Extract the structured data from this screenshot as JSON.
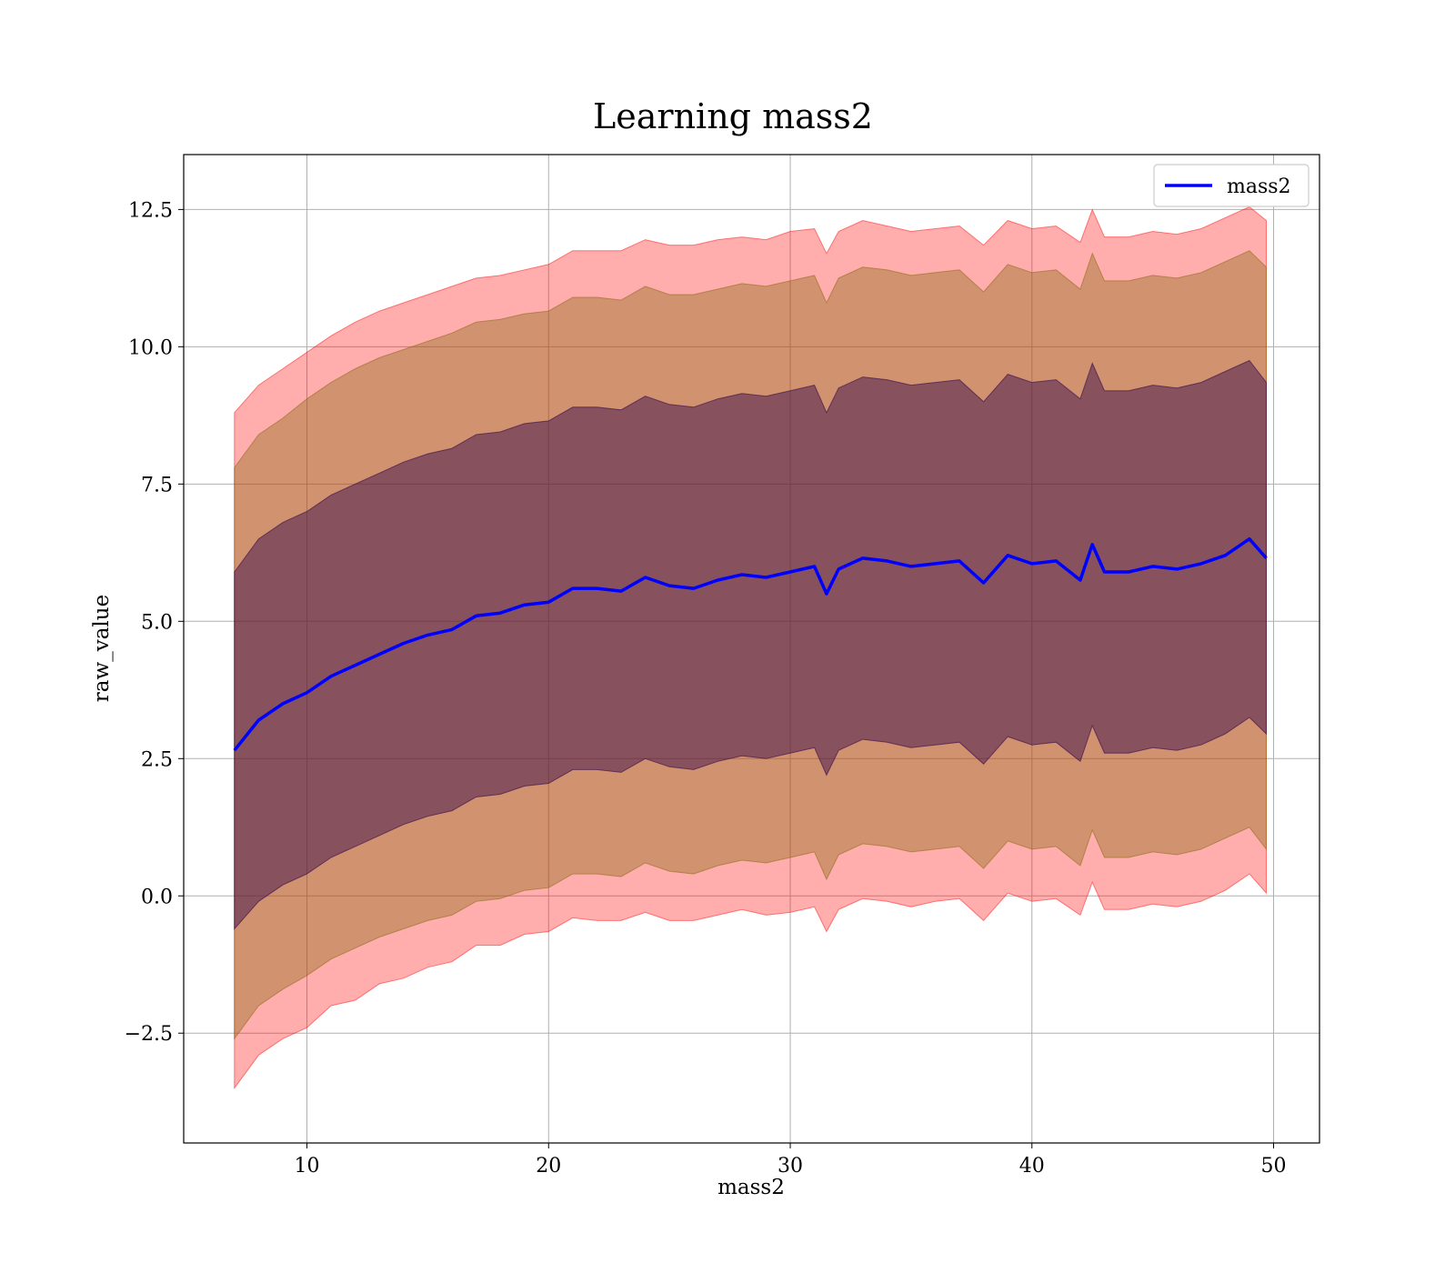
{
  "chart_data": {
    "type": "line",
    "title": "Learning mass2",
    "xlabel": "mass2",
    "ylabel": "raw_value",
    "xlim": [
      4.9,
      51.9
    ],
    "ylim": [
      -4.5,
      13.5
    ],
    "x_ticks": [
      10,
      20,
      30,
      40,
      50
    ],
    "x_tick_labels": [
      "10",
      "20",
      "30",
      "40",
      "50"
    ],
    "y_ticks": [
      -2.5,
      0.0,
      2.5,
      5.0,
      7.5,
      10.0,
      12.5
    ],
    "y_tick_labels": [
      "−2.5",
      "0.0",
      "2.5",
      "5.0",
      "7.5",
      "10.0",
      "12.5"
    ],
    "grid": true,
    "legend": {
      "position": "upper-right",
      "entries": [
        {
          "label": "mass2",
          "color": "#0000ff"
        }
      ]
    },
    "x": [
      7.0,
      8.0,
      9.0,
      10.0,
      11.0,
      12.0,
      13.0,
      14.0,
      15.0,
      16.0,
      17.0,
      18.0,
      19.0,
      20.0,
      21.0,
      22.0,
      23.0,
      24.0,
      25.0,
      26.0,
      27.0,
      28.0,
      29.0,
      30.0,
      31.0,
      31.5,
      32.0,
      33.0,
      34.0,
      35.0,
      36.0,
      37.0,
      38.0,
      39.0,
      40.0,
      41.0,
      42.0,
      42.5,
      43.0,
      44.0,
      45.0,
      46.0,
      47.0,
      48.0,
      49.0,
      49.7
    ],
    "series": [
      {
        "name": "mass2",
        "color": "#0000ff",
        "values": [
          2.65,
          3.2,
          3.5,
          3.7,
          4.0,
          4.2,
          4.4,
          4.6,
          4.75,
          4.85,
          5.1,
          5.15,
          5.3,
          5.35,
          5.6,
          5.6,
          5.55,
          5.8,
          5.65,
          5.6,
          5.75,
          5.85,
          5.8,
          5.9,
          6.0,
          5.5,
          5.95,
          6.15,
          6.1,
          6.0,
          6.05,
          6.1,
          5.7,
          6.2,
          6.05,
          6.1,
          5.75,
          6.4,
          5.9,
          5.9,
          6.0,
          5.95,
          6.05,
          6.2,
          6.5,
          6.15
        ]
      }
    ],
    "bands": [
      {
        "name": "outer",
        "color": "#ff0000",
        "opacity": 0.32,
        "upper": [
          8.8,
          9.3,
          9.6,
          9.9,
          10.2,
          10.45,
          10.65,
          10.8,
          10.95,
          11.1,
          11.25,
          11.3,
          11.4,
          11.5,
          11.75,
          11.75,
          11.75,
          11.95,
          11.85,
          11.85,
          11.95,
          12.0,
          11.95,
          12.1,
          12.15,
          11.7,
          12.1,
          12.3,
          12.2,
          12.1,
          12.15,
          12.2,
          11.85,
          12.3,
          12.15,
          12.2,
          11.9,
          12.5,
          12.0,
          12.0,
          12.1,
          12.05,
          12.15,
          12.35,
          12.55,
          12.3
        ],
        "lower": [
          -3.5,
          -2.9,
          -2.6,
          -2.4,
          -2.0,
          -1.9,
          -1.6,
          -1.5,
          -1.3,
          -1.2,
          -0.9,
          -0.9,
          -0.7,
          -0.65,
          -0.4,
          -0.45,
          -0.45,
          -0.3,
          -0.45,
          -0.45,
          -0.35,
          -0.25,
          -0.35,
          -0.3,
          -0.2,
          -0.65,
          -0.25,
          -0.05,
          -0.1,
          -0.2,
          -0.1,
          -0.05,
          -0.45,
          0.05,
          -0.1,
          -0.05,
          -0.35,
          0.25,
          -0.25,
          -0.25,
          -0.15,
          -0.2,
          -0.1,
          0.1,
          0.4,
          0.05
        ]
      },
      {
        "name": "middle",
        "color": "#8b6914",
        "opacity": 0.4,
        "upper": [
          7.8,
          8.4,
          8.7,
          9.05,
          9.35,
          9.6,
          9.8,
          9.95,
          10.1,
          10.25,
          10.45,
          10.5,
          10.6,
          10.65,
          10.9,
          10.9,
          10.85,
          11.1,
          10.95,
          10.95,
          11.05,
          11.15,
          11.1,
          11.2,
          11.3,
          10.8,
          11.25,
          11.45,
          11.4,
          11.3,
          11.35,
          11.4,
          11.0,
          11.5,
          11.35,
          11.4,
          11.05,
          11.7,
          11.2,
          11.2,
          11.3,
          11.25,
          11.35,
          11.55,
          11.75,
          11.45
        ],
        "lower": [
          -2.6,
          -2.0,
          -1.7,
          -1.45,
          -1.15,
          -0.95,
          -0.75,
          -0.6,
          -0.45,
          -0.35,
          -0.1,
          -0.05,
          0.1,
          0.15,
          0.4,
          0.4,
          0.35,
          0.6,
          0.45,
          0.4,
          0.55,
          0.65,
          0.6,
          0.7,
          0.8,
          0.3,
          0.75,
          0.95,
          0.9,
          0.8,
          0.85,
          0.9,
          0.5,
          1.0,
          0.85,
          0.9,
          0.55,
          1.2,
          0.7,
          0.7,
          0.8,
          0.75,
          0.85,
          1.05,
          1.25,
          0.85
        ]
      },
      {
        "name": "inner",
        "color": "#3d0f4a",
        "opacity": 0.5,
        "upper": [
          5.9,
          6.5,
          6.8,
          7.0,
          7.3,
          7.5,
          7.7,
          7.9,
          8.05,
          8.15,
          8.4,
          8.45,
          8.6,
          8.65,
          8.9,
          8.9,
          8.85,
          9.1,
          8.95,
          8.9,
          9.05,
          9.15,
          9.1,
          9.2,
          9.3,
          8.8,
          9.25,
          9.45,
          9.4,
          9.3,
          9.35,
          9.4,
          9.0,
          9.5,
          9.35,
          9.4,
          9.05,
          9.7,
          9.2,
          9.2,
          9.3,
          9.25,
          9.35,
          9.55,
          9.75,
          9.35
        ],
        "lower": [
          -0.6,
          -0.1,
          0.2,
          0.4,
          0.7,
          0.9,
          1.1,
          1.3,
          1.45,
          1.55,
          1.8,
          1.85,
          2.0,
          2.05,
          2.3,
          2.3,
          2.25,
          2.5,
          2.35,
          2.3,
          2.45,
          2.55,
          2.5,
          2.6,
          2.7,
          2.2,
          2.65,
          2.85,
          2.8,
          2.7,
          2.75,
          2.8,
          2.4,
          2.9,
          2.75,
          2.8,
          2.45,
          3.1,
          2.6,
          2.6,
          2.7,
          2.65,
          2.75,
          2.95,
          3.25,
          2.95
        ]
      }
    ]
  }
}
